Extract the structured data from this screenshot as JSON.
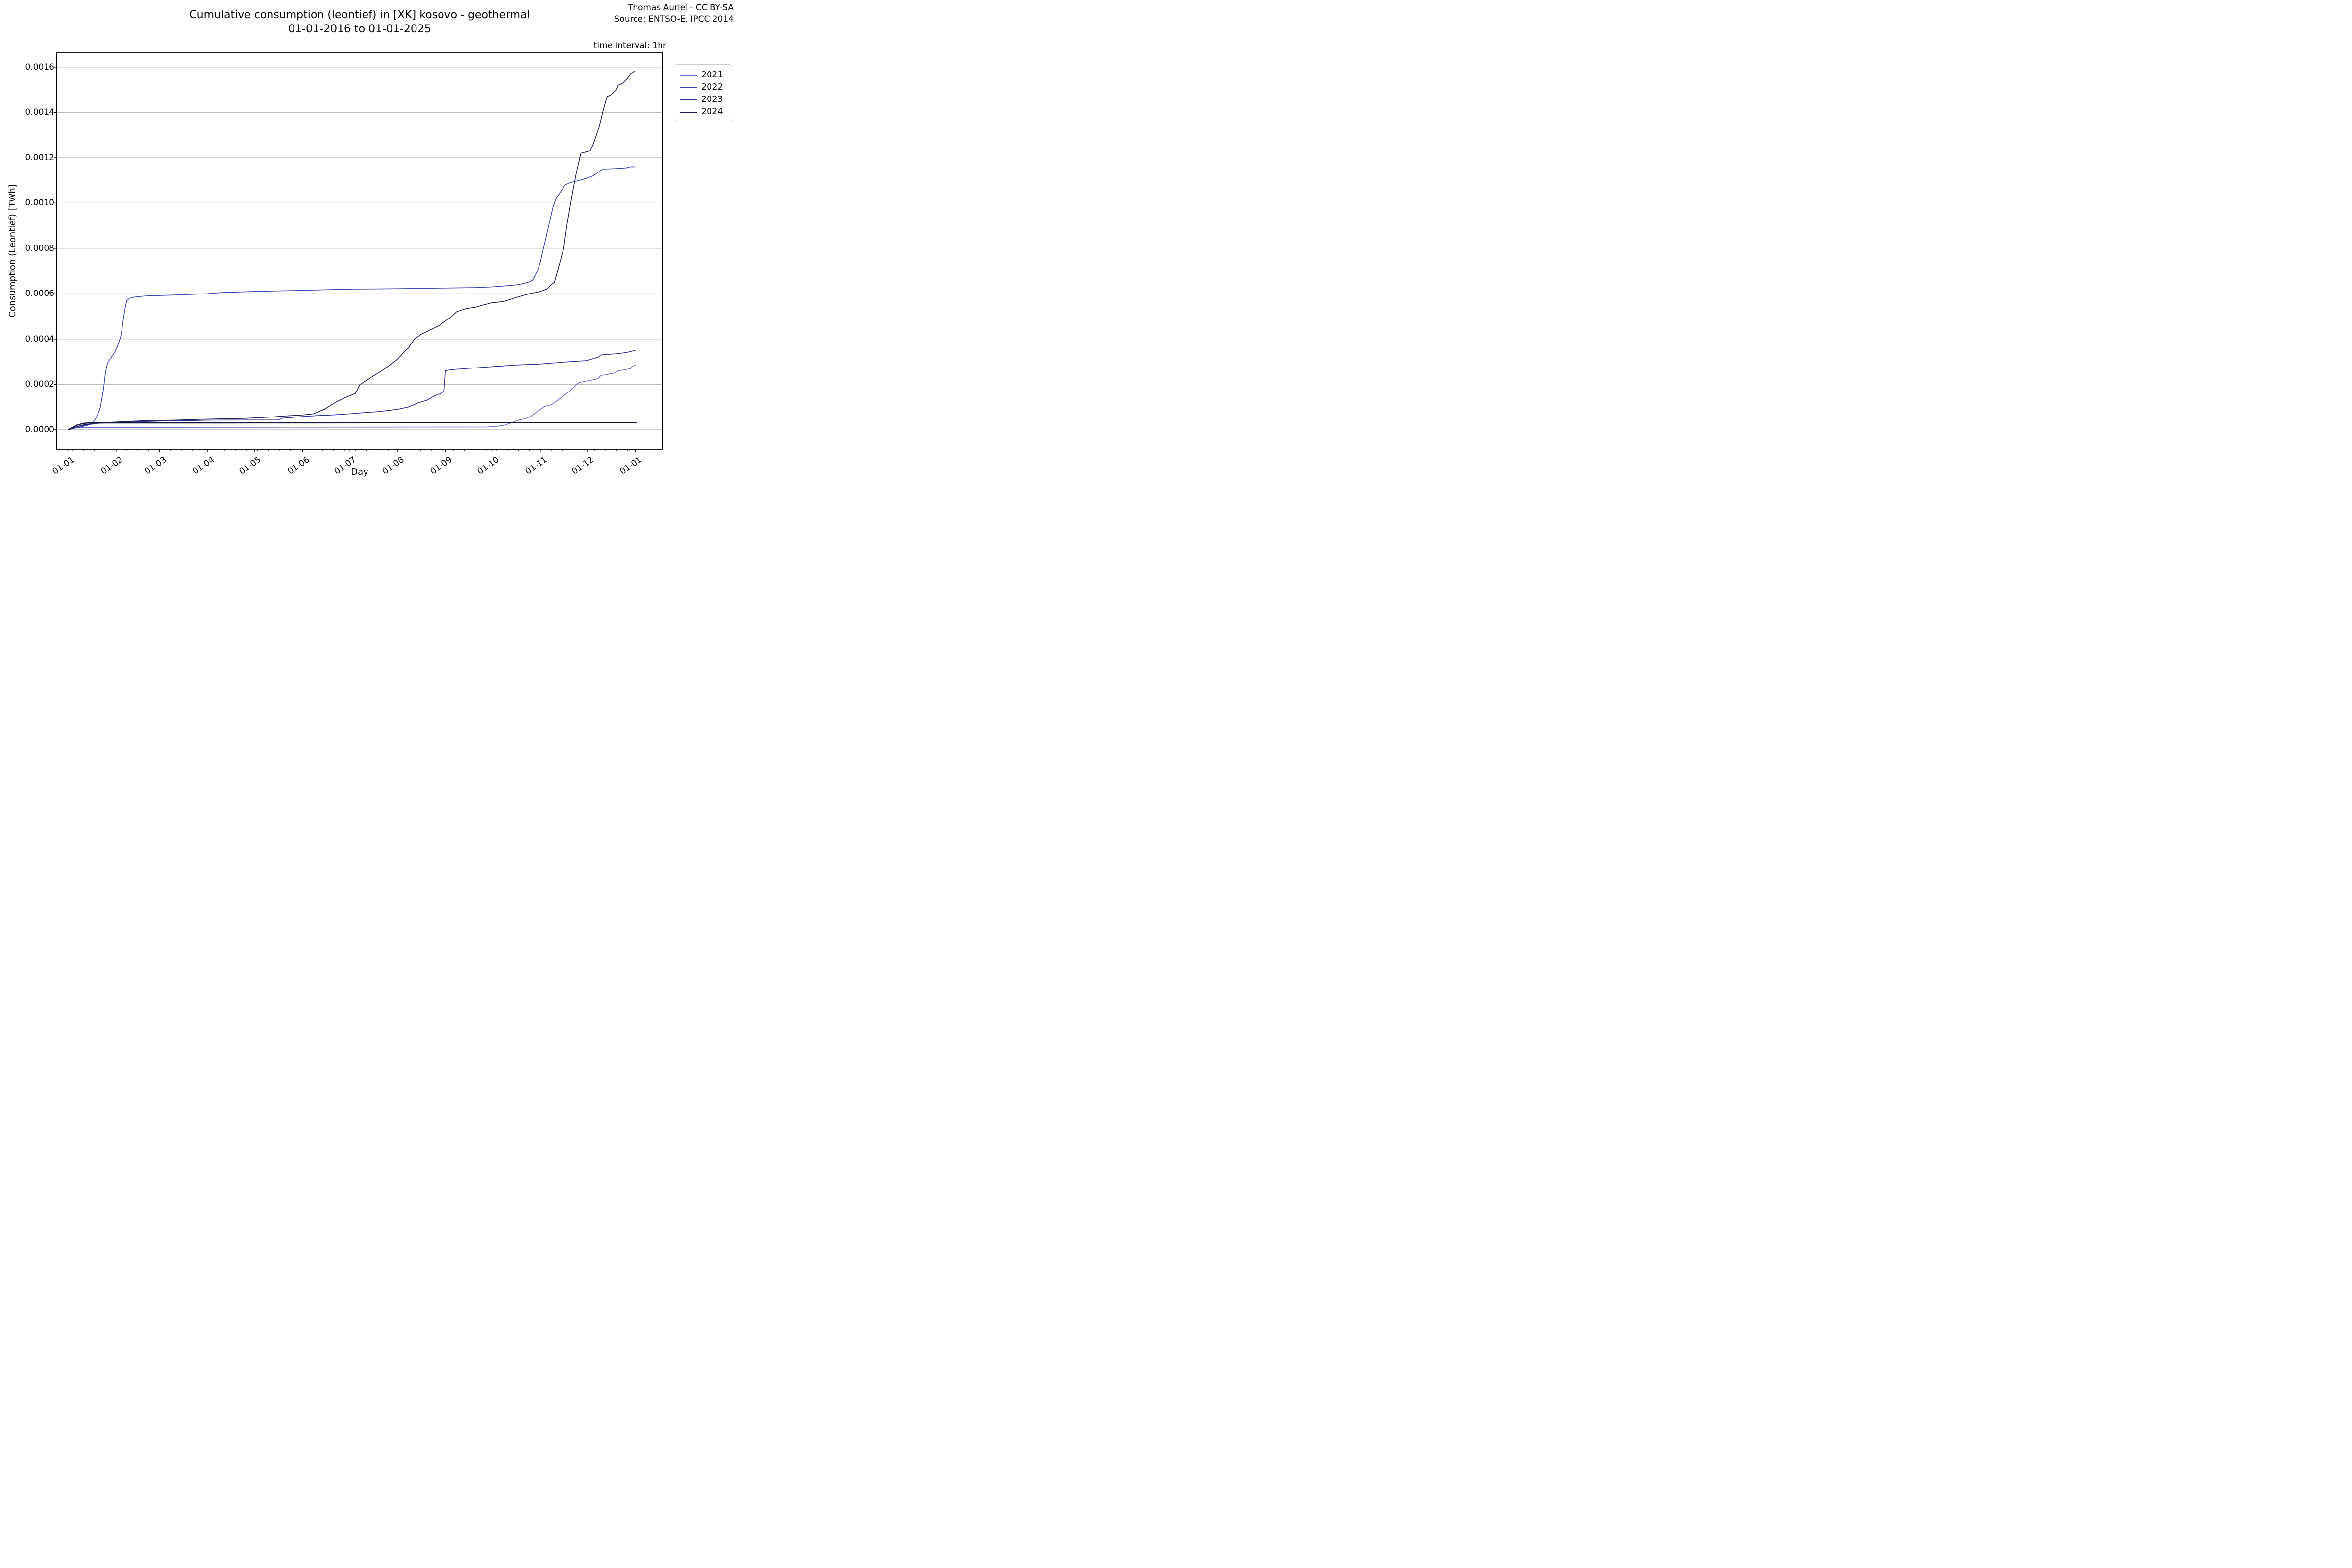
{
  "attribution": {
    "line1": "Thomas Auriel - CC BY-SA",
    "line2": "Source: ENTSO-E, IPCC 2014"
  },
  "chart_data": {
    "type": "line",
    "title": "Cumulative consumption (leontief) in [XK] kosovo - geothermal",
    "subtitle": "01-01-2016 to 01-01-2025",
    "annotation_top_right": "time interval: 1hr",
    "xlabel": "Day",
    "ylabel": "Consumption (Leontief) [TWh]",
    "grid": "horizontal",
    "legend_position": "outside-upper-right",
    "ylim": [
      -8.7e-05,
      0.001664
    ],
    "xlim_days": [
      -8.5,
      382
    ],
    "x_ticks": {
      "labels": [
        "01-01",
        "01-02",
        "01-03",
        "01-04",
        "01-05",
        "01-06",
        "01-07",
        "01-08",
        "01-09",
        "01-10",
        "01-11",
        "01-12",
        "01-01"
      ],
      "days": [
        0,
        31,
        59,
        90,
        120,
        151,
        181,
        212,
        243,
        273,
        304,
        334,
        365
      ]
    },
    "x_minor_tick_interval_days": 7,
    "y_ticks": {
      "labels": [
        "0.0000",
        "0.0002",
        "0.0004",
        "0.0006",
        "0.0008",
        "0.0010",
        "0.0012",
        "0.0014",
        "0.0016"
      ],
      "values": [
        0,
        0.0002,
        0.0004,
        0.0006,
        0.0008,
        0.001,
        0.0012,
        0.0014,
        0.0016
      ]
    },
    "series": [
      {
        "name": "2021",
        "color": "#636bd4",
        "width": 1.6,
        "in_legend": true,
        "points": [
          [
            0,
            0
          ],
          [
            3,
            8e-06
          ],
          [
            10,
            1e-05
          ],
          [
            270,
            1.2e-05
          ],
          [
            276,
            1.5e-05
          ],
          [
            281,
            2e-05
          ],
          [
            285,
            3e-05
          ],
          [
            289,
            4e-05
          ],
          [
            292,
            4.5e-05
          ],
          [
            295,
            5e-05
          ],
          [
            298,
            6e-05
          ],
          [
            300,
            7e-05
          ],
          [
            302,
            8e-05
          ],
          [
            304,
            9e-05
          ],
          [
            306,
            0.0001
          ],
          [
            308,
            0.000105
          ],
          [
            311,
            0.00011
          ],
          [
            313,
            0.00012
          ],
          [
            315,
            0.00013
          ],
          [
            317,
            0.00014
          ],
          [
            319,
            0.00015
          ],
          [
            321,
            0.00016
          ],
          [
            323,
            0.00017
          ],
          [
            324,
            0.00018
          ],
          [
            326,
            0.00019
          ],
          [
            328,
            0.000205
          ],
          [
            330,
            0.00021
          ],
          [
            334,
            0.000215
          ],
          [
            338,
            0.00022
          ],
          [
            341,
            0.000225
          ],
          [
            343,
            0.00024
          ],
          [
            346,
            0.000242
          ],
          [
            349,
            0.000247
          ],
          [
            352,
            0.00025
          ],
          [
            354,
            0.00026
          ],
          [
            357,
            0.000263
          ],
          [
            360,
            0.000267
          ],
          [
            362,
            0.00027
          ],
          [
            363,
            0.00028
          ],
          [
            365,
            0.000285
          ]
        ]
      },
      {
        "name": "2022",
        "color": "#3a43b5",
        "width": 1.6,
        "in_legend": true,
        "points": [
          [
            0,
            0
          ],
          [
            7,
            1e-05
          ],
          [
            13,
            2e-05
          ],
          [
            16,
            3e-05
          ],
          [
            18,
            5e-05
          ],
          [
            20,
            8e-05
          ],
          [
            21,
            0.0001
          ],
          [
            23,
            0.00018
          ],
          [
            24,
            0.00024
          ],
          [
            25,
            0.00028
          ],
          [
            26,
            0.0003
          ],
          [
            28,
            0.00032
          ],
          [
            30,
            0.00034
          ],
          [
            32,
            0.00037
          ],
          [
            34,
            0.00041
          ],
          [
            35,
            0.00045
          ],
          [
            36,
            0.0005
          ],
          [
            37,
            0.00054
          ],
          [
            38,
            0.00057
          ],
          [
            40,
            0.00058
          ],
          [
            43,
            0.000585
          ],
          [
            50,
            0.00059
          ],
          [
            59,
            0.000592
          ],
          [
            73,
            0.000595
          ],
          [
            90,
            0.0006
          ],
          [
            99,
            0.000605
          ],
          [
            120,
            0.00061
          ],
          [
            151,
            0.000615
          ],
          [
            181,
            0.00062
          ],
          [
            212,
            0.000622
          ],
          [
            243,
            0.000625
          ],
          [
            262,
            0.000627
          ],
          [
            273,
            0.00063
          ],
          [
            282,
            0.000635
          ],
          [
            290,
            0.00064
          ],
          [
            296,
            0.00065
          ],
          [
            299,
            0.00066
          ],
          [
            302,
            0.0007
          ],
          [
            304,
            0.00074
          ],
          [
            306,
            0.0008
          ],
          [
            308,
            0.00086
          ],
          [
            310,
            0.00092
          ],
          [
            312,
            0.00098
          ],
          [
            314,
            0.00102
          ],
          [
            316,
            0.00104
          ],
          [
            318,
            0.00106
          ],
          [
            320,
            0.00108
          ],
          [
            323,
            0.00109
          ],
          [
            326,
            0.001095
          ],
          [
            329,
            0.0011
          ],
          [
            334,
            0.00111
          ],
          [
            338,
            0.00112
          ],
          [
            341,
            0.001135
          ],
          [
            343,
            0.001145
          ],
          [
            345,
            0.00115
          ],
          [
            353,
            0.001152
          ],
          [
            359,
            0.001155
          ],
          [
            362,
            0.00116
          ],
          [
            365,
            0.00116
          ]
        ]
      },
      {
        "name": "2023",
        "color": "#2a2f97",
        "width": 1.6,
        "in_legend": true,
        "points": [
          [
            0,
            0
          ],
          [
            4,
            1e-05
          ],
          [
            11,
            2e-05
          ],
          [
            19,
            2.8e-05
          ],
          [
            31,
            3.2e-05
          ],
          [
            50,
            3.6e-05
          ],
          [
            59,
            3.8e-05
          ],
          [
            78,
            4e-05
          ],
          [
            90,
            4.2e-05
          ],
          [
            136,
            4.3e-05
          ],
          [
            137,
            5e-05
          ],
          [
            151,
            5.8e-05
          ],
          [
            160,
            6.2e-05
          ],
          [
            170,
            6.5e-05
          ],
          [
            181,
            7e-05
          ],
          [
            190,
            7.5e-05
          ],
          [
            200,
            8e-05
          ],
          [
            212,
            9e-05
          ],
          [
            219,
            0.0001
          ],
          [
            226,
            0.00012
          ],
          [
            231,
            0.00013
          ],
          [
            236,
            0.00015
          ],
          [
            240,
            0.00016
          ],
          [
            242,
            0.00017
          ],
          [
            243,
            0.00026
          ],
          [
            247,
            0.000265
          ],
          [
            257,
            0.00027
          ],
          [
            267,
            0.000275
          ],
          [
            277,
            0.00028
          ],
          [
            287,
            0.000285
          ],
          [
            304,
            0.00029
          ],
          [
            313,
            0.000295
          ],
          [
            323,
            0.0003
          ],
          [
            334,
            0.000305
          ],
          [
            341,
            0.00032
          ],
          [
            343,
            0.00033
          ],
          [
            353,
            0.000335
          ],
          [
            359,
            0.00034
          ],
          [
            365,
            0.00035
          ]
        ]
      },
      {
        "name": "2024",
        "color": "#1a1f52",
        "width": 1.6,
        "in_legend": true,
        "points": [
          [
            0,
            0
          ],
          [
            9,
            2e-05
          ],
          [
            19,
            3e-05
          ],
          [
            35,
            3.5e-05
          ],
          [
            50,
            4e-05
          ],
          [
            68,
            4.2e-05
          ],
          [
            83,
            4.5e-05
          ],
          [
            99,
            4.8e-05
          ],
          [
            114,
            5e-05
          ],
          [
            129,
            5.5e-05
          ],
          [
            139,
            6e-05
          ],
          [
            151,
            6.5e-05
          ],
          [
            158,
            7e-05
          ],
          [
            165,
            9e-05
          ],
          [
            172,
            0.00012
          ],
          [
            178,
            0.00014
          ],
          [
            185,
            0.00016
          ],
          [
            188,
            0.0002
          ],
          [
            195,
            0.00023
          ],
          [
            202,
            0.00026
          ],
          [
            208,
            0.00029
          ],
          [
            212,
            0.00031
          ],
          [
            216,
            0.00034
          ],
          [
            219,
            0.00036
          ],
          [
            223,
            0.0004
          ],
          [
            227,
            0.00042
          ],
          [
            233,
            0.00044
          ],
          [
            239,
            0.00046
          ],
          [
            243,
            0.00048
          ],
          [
            247,
            0.0005
          ],
          [
            250,
            0.00052
          ],
          [
            254,
            0.00053
          ],
          [
            257,
            0.000535
          ],
          [
            262,
            0.00054
          ],
          [
            267,
            0.00055
          ],
          [
            273,
            0.00056
          ],
          [
            280,
            0.000565
          ],
          [
            287,
            0.00058
          ],
          [
            292,
            0.00059
          ],
          [
            297,
            0.0006
          ],
          [
            304,
            0.00061
          ],
          [
            308,
            0.00062
          ],
          [
            311,
            0.00064
          ],
          [
            313,
            0.00065
          ],
          [
            315,
            0.0007
          ],
          [
            317,
            0.00075
          ],
          [
            319,
            0.0008
          ],
          [
            321,
            0.0009
          ],
          [
            323,
            0.00098
          ],
          [
            325,
            0.00106
          ],
          [
            327,
            0.00113
          ],
          [
            329,
            0.00119
          ],
          [
            330,
            0.00122
          ],
          [
            333,
            0.001225
          ],
          [
            336,
            0.00123
          ],
          [
            338,
            0.00126
          ],
          [
            340,
            0.0013
          ],
          [
            342,
            0.00134
          ],
          [
            344,
            0.0014
          ],
          [
            346,
            0.00145
          ],
          [
            347,
            0.00147
          ],
          [
            350,
            0.00148
          ],
          [
            353,
            0.0015
          ],
          [
            354,
            0.00152
          ],
          [
            357,
            0.00153
          ],
          [
            360,
            0.00155
          ],
          [
            362,
            0.00157
          ],
          [
            364,
            0.00158
          ],
          [
            365,
            0.00158
          ]
        ]
      },
      {
        "name": "unlabeled",
        "color": "#12163f",
        "width": 2.4,
        "in_legend": false,
        "points": [
          [
            0,
            0
          ],
          [
            3,
            1e-05
          ],
          [
            6,
            2e-05
          ],
          [
            10,
            2.8e-05
          ],
          [
            14,
            3e-05
          ],
          [
            100,
            3e-05
          ],
          [
            366,
            3.1e-05
          ]
        ]
      }
    ]
  },
  "legend": {
    "entries": [
      {
        "label": "2021",
        "color": "#636bd4"
      },
      {
        "label": "2022",
        "color": "#3a43b5"
      },
      {
        "label": "2023",
        "color": "#2a2f97"
      },
      {
        "label": "2024",
        "color": "#1a1f52"
      }
    ]
  }
}
